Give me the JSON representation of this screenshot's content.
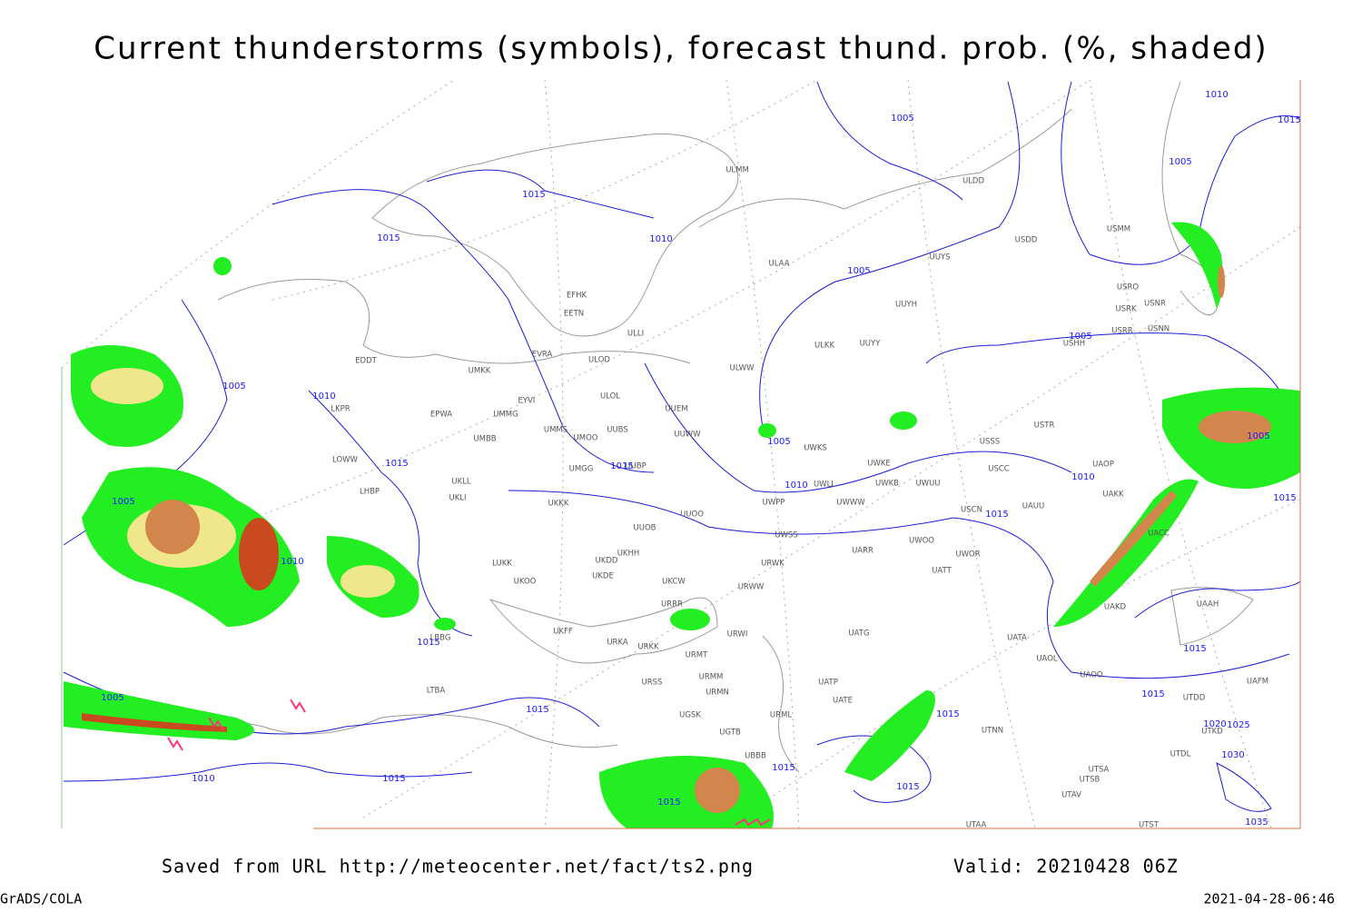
{
  "title": "Current thunderstorms (symbols), forecast thund. prob. (%, shaded)",
  "footer": {
    "source": "Saved from URL http://meteocenter.net/fact/ts2.png",
    "valid": "Valid: 20210428 06Z",
    "software": "GrADS/COLA",
    "timestamp": "2021-04-28-06:46"
  },
  "stations": [
    "ULMM",
    "ULAA",
    "UUYH",
    "ULKK",
    "UUYY",
    "ULWW",
    "UUEM",
    "UUWW",
    "UWKS",
    "UWKE",
    "UWKB",
    "UWUU",
    "UWLL",
    "UWPP",
    "UWWW",
    "UUOO",
    "UUOB",
    "UWSS",
    "UARR",
    "UWOO",
    "UWOR",
    "UATT",
    "EFHK",
    "EETN",
    "ULLI",
    "EVRA",
    "ULOD",
    "ULOL",
    "UMKK",
    "EYVI",
    "EPWA",
    "UMMG",
    "UMMS",
    "UMOO",
    "UUBS",
    "UMBB",
    "EDDT",
    "LKPR",
    "LOWW",
    "LHBP",
    "UKLL",
    "UKLI",
    "UKKK",
    "UMGG",
    "UUBP",
    "UKHH",
    "UKDD",
    "UKDE",
    "LUKK",
    "UKOO",
    "UKCW",
    "URRR",
    "URWI",
    "URKA",
    "URKK",
    "URMT",
    "URMM",
    "URMN",
    "URSS",
    "URML",
    "UGSK",
    "UGTB",
    "UBBB",
    "UATE",
    "UATP",
    "UATG",
    "URWW",
    "URWK",
    "LBBG",
    "LTBA",
    "UKFF",
    "ULDD",
    "UUYS",
    "USDD",
    "USMM",
    "USRO",
    "USRK",
    "USNR",
    "USRR",
    "USNN",
    "USHH",
    "USTR",
    "USSS",
    "USCC",
    "UAOP",
    "UAKK",
    "UAUU",
    "USCN",
    "UACC",
    "UAKD",
    "UATA",
    "UAOL",
    "UAOO",
    "UTNN",
    "UTSA",
    "UTSB",
    "UTAV",
    "UTAA",
    "UTST",
    "UAAH",
    "UAFM",
    "UTDD",
    "UTDL",
    "UTKD"
  ],
  "isobar_labels": [
    1005,
    1010,
    1015,
    1005,
    1010,
    1015,
    1005,
    1010,
    1015,
    1015,
    1015,
    1015,
    1010,
    1005,
    1005,
    1015,
    1015,
    1010,
    1005,
    1010,
    1015,
    1005,
    1005,
    1010,
    1005,
    1015,
    1015,
    1015,
    1015,
    1015,
    1015,
    1015,
    1030,
    1035,
    1025,
    1020
  ]
}
